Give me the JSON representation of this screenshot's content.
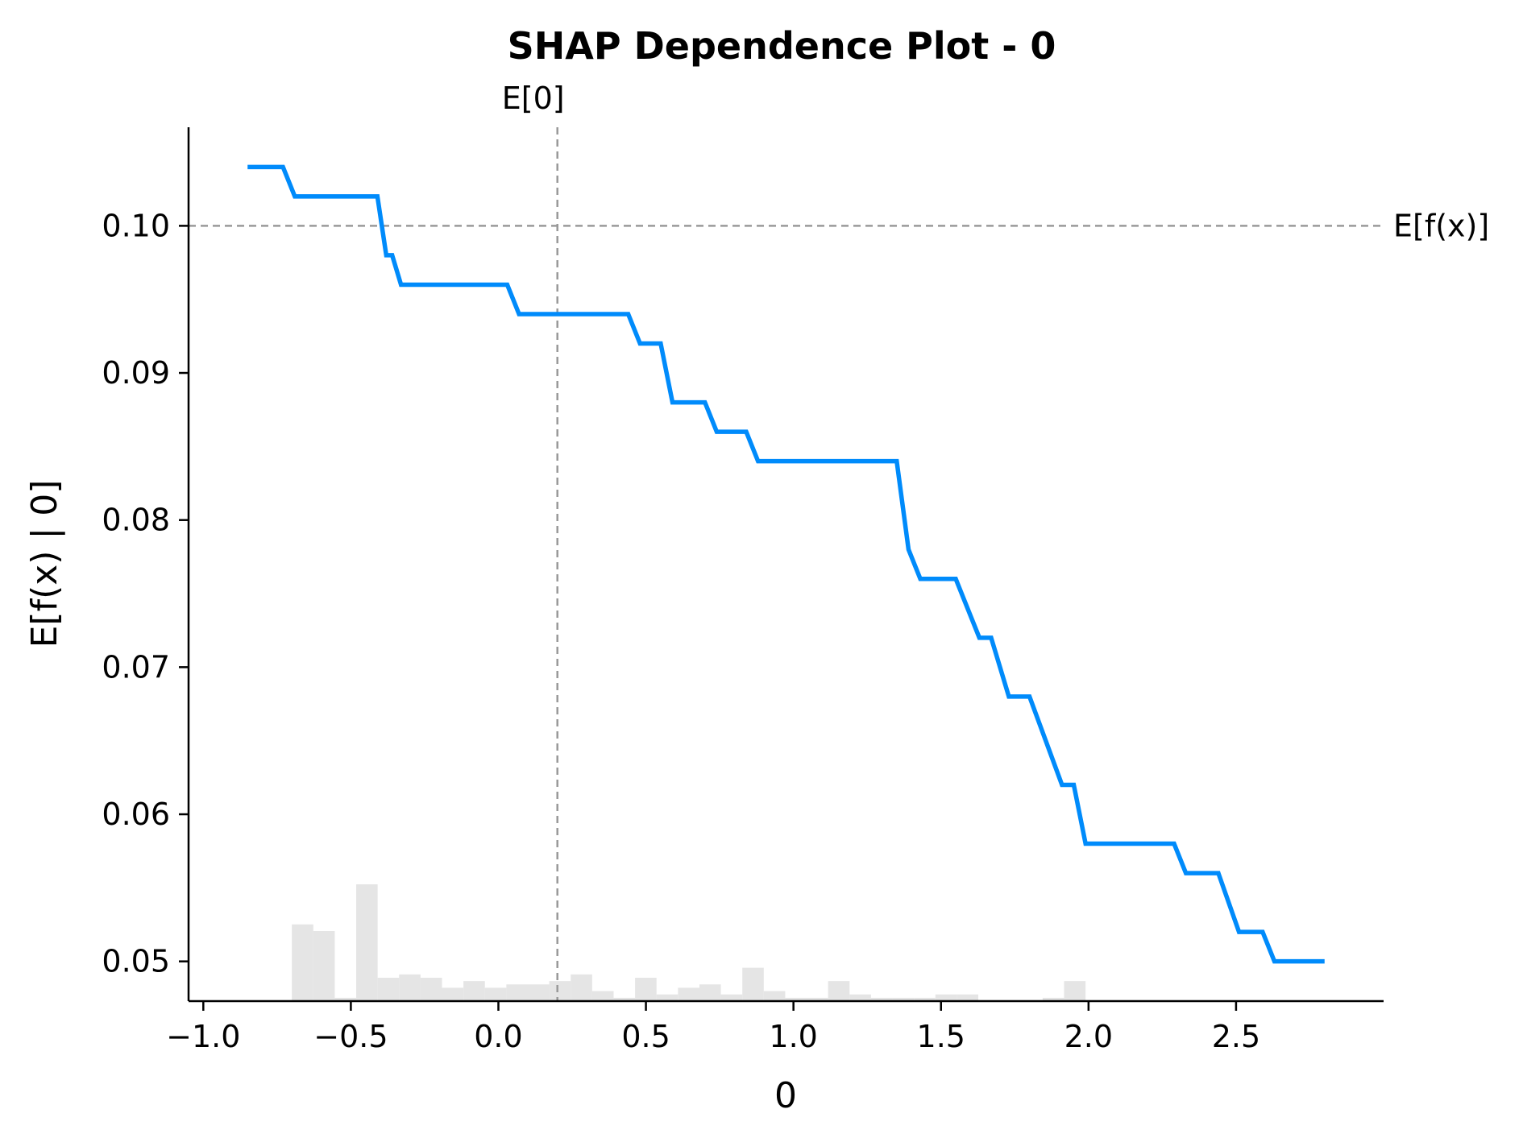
{
  "chart_data": {
    "type": "line",
    "title": "SHAP Dependence Plot - 0",
    "xlabel": "0",
    "ylabel": "E[f(x) | 0]",
    "xlim": [
      -1.05,
      3.0
    ],
    "ylim": [
      0.0473,
      0.1067
    ],
    "x_ticks": [
      -1.0,
      -0.5,
      0.0,
      0.5,
      1.0,
      1.5,
      2.0,
      2.5
    ],
    "x_tick_labels": [
      "−1.0",
      "−0.5",
      "0.0",
      "0.5",
      "1.0",
      "1.5",
      "2.0",
      "2.5"
    ],
    "y_ticks": [
      0.05,
      0.06,
      0.07,
      0.08,
      0.09,
      0.1
    ],
    "y_tick_labels": [
      "0.05",
      "0.06",
      "0.07",
      "0.08",
      "0.09",
      "0.10"
    ],
    "grid": false,
    "reference_lines": {
      "expected_value": {
        "label": "E[f(x)]",
        "y": 0.1,
        "style": "dashed",
        "color": "#999999"
      },
      "feature_mean": {
        "label": "E[0]",
        "x": 0.2,
        "style": "dashed",
        "color": "#999999"
      }
    },
    "series": [
      {
        "color": "#008bfb",
        "x": [
          -0.85,
          -0.73,
          -0.69,
          -0.41,
          -0.38,
          -0.36,
          -0.33,
          -0.3,
          0.03,
          0.07,
          0.44,
          0.48,
          0.55,
          0.59,
          0.7,
          0.74,
          0.84,
          0.88,
          1.35,
          1.39,
          1.43,
          1.55,
          1.63,
          1.67,
          1.73,
          1.8,
          1.91,
          1.95,
          1.99,
          2.29,
          2.33,
          2.44,
          2.51,
          2.59,
          2.63,
          2.8
        ],
        "y": [
          0.104,
          0.104,
          0.102,
          0.102,
          0.098,
          0.098,
          0.096,
          0.096,
          0.096,
          0.094,
          0.094,
          0.092,
          0.092,
          0.088,
          0.088,
          0.086,
          0.086,
          0.084,
          0.084,
          0.078,
          0.076,
          0.076,
          0.072,
          0.072,
          0.068,
          0.068,
          0.062,
          0.062,
          0.058,
          0.058,
          0.056,
          0.056,
          0.052,
          0.052,
          0.05,
          0.05
        ]
      }
    ],
    "histogram": {
      "color": "#e5e5e5",
      "bin_start": -0.7,
      "bin_width": 0.0727,
      "densities": [
        0.23,
        0.21,
        0.01,
        0.35,
        0.07,
        0.08,
        0.07,
        0.04,
        0.06,
        0.04,
        0.05,
        0.05,
        0.06,
        0.08,
        0.03,
        0.01,
        0.07,
        0.02,
        0.04,
        0.05,
        0.02,
        0.1,
        0.03,
        0.01,
        0.01,
        0.06,
        0.02,
        0.01,
        0.01,
        0.01,
        0.02,
        0.02,
        0.0,
        0.0,
        0.0,
        0.01,
        0.06
      ]
    }
  }
}
